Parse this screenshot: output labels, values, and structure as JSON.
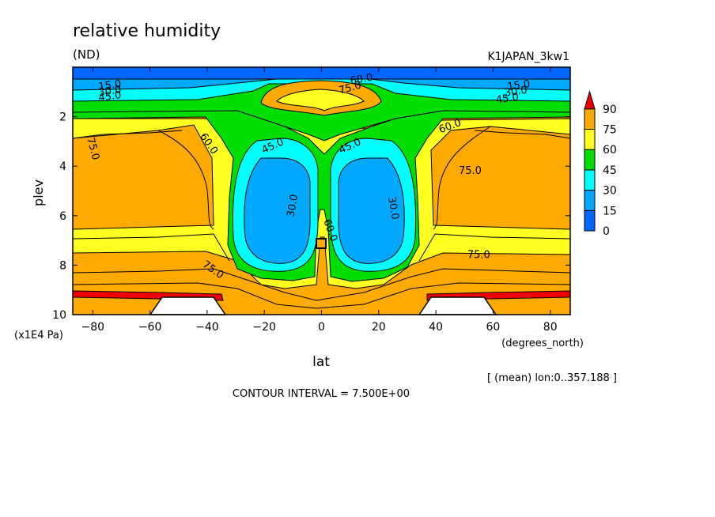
{
  "chart_data": {
    "type": "heatmap",
    "title": "relative humidity",
    "units": "(ND)",
    "dataset": "K1JAPAN_3kw1",
    "xlabel": "lat",
    "x_units": "(degrees_north)",
    "ylabel": "plev",
    "y_units": "(x1E4 Pa)",
    "xlim": [
      -87,
      87
    ],
    "ylim": [
      10,
      0
    ],
    "x_ticks": [
      "-80",
      "-60",
      "-40",
      "-20",
      "0",
      "20",
      "40",
      "60",
      "80"
    ],
    "y_ticks": [
      "2",
      "4",
      "6",
      "8",
      "10"
    ],
    "average_note": "[ (mean) lon:0..357.188 ]",
    "contour_interval": "CONTOUR INTERVAL = 7.500E+00",
    "colorbar": {
      "labels": [
        "0",
        "15",
        "30",
        "45",
        "60",
        "75",
        "90"
      ],
      "bands": [
        {
          "from": 0,
          "to": 15,
          "color": "#0066ff"
        },
        {
          "from": 15,
          "to": 30,
          "color": "#00a8ff"
        },
        {
          "from": 30,
          "to": 45,
          "color": "#00ffff"
        },
        {
          "from": 45,
          "to": 60,
          "color": "#00dd00"
        },
        {
          "from": 60,
          "to": 75,
          "color": "#ffff22"
        },
        {
          "from": 75,
          "to": 90,
          "color": "#ffaa00"
        },
        {
          "from": 90,
          "to": 100,
          "color": "#ee0000"
        }
      ]
    },
    "contour_labels": [
      {
        "text": "75.0",
        "lat": -80,
        "plev": 3.3,
        "rot": 75
      },
      {
        "text": "60.0",
        "lat": -39.5,
        "plev": 3.1,
        "rot": 55
      },
      {
        "text": "45.0",
        "lat": -17,
        "plev": 3.2,
        "rot": -25
      },
      {
        "text": "45.0",
        "lat": 10,
        "plev": 3.2,
        "rot": -25
      },
      {
        "text": "30.0",
        "lat": -10,
        "plev": 5.6,
        "rot": -80
      },
      {
        "text": "30.0",
        "lat": 25,
        "plev": 5.7,
        "rot": 80
      },
      {
        "text": "60.0",
        "lat": 3,
        "plev": 6.6,
        "rot": 70
      },
      {
        "text": "75.0",
        "lat": 10,
        "plev": 0.85,
        "rot": -15
      },
      {
        "text": "60.0",
        "lat": 14,
        "plev": 0.5,
        "rot": -10
      },
      {
        "text": "15.0",
        "lat": -74,
        "plev": 0.75,
        "rot": -8
      },
      {
        "text": "30.0",
        "lat": -74,
        "plev": 0.98,
        "rot": -8
      },
      {
        "text": "45.0",
        "lat": -74,
        "plev": 1.2,
        "rot": -8
      },
      {
        "text": "15.0",
        "lat": 69,
        "plev": 0.75,
        "rot": -8
      },
      {
        "text": "30.0",
        "lat": 68,
        "plev": 1.0,
        "rot": -8
      },
      {
        "text": "45.0",
        "lat": 65,
        "plev": 1.28,
        "rot": -8
      },
      {
        "text": "60.0",
        "lat": 45,
        "plev": 2.4,
        "rot": -20
      },
      {
        "text": "75.0",
        "lat": 52,
        "plev": 4.2,
        "rot": 0
      },
      {
        "text": "75.0",
        "lat": 55,
        "plev": 7.6,
        "rot": 0
      },
      {
        "text": "75.0",
        "lat": -38,
        "plev": 8.2,
        "rot": 35
      }
    ]
  }
}
